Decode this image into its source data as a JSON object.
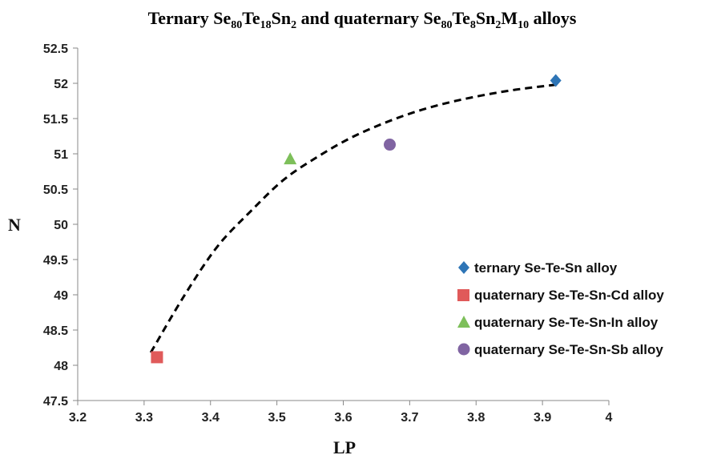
{
  "chart_data": {
    "type": "scatter",
    "title": {
      "parts": [
        {
          "t": "Ternary Se",
          "sub": false
        },
        {
          "t": "80",
          "sub": true
        },
        {
          "t": "Te",
          "sub": false
        },
        {
          "t": "18",
          "sub": true
        },
        {
          "t": "Sn",
          "sub": false
        },
        {
          "t": "2",
          "sub": true
        },
        {
          "t": " and quaternary Se",
          "sub": false
        },
        {
          "t": "80",
          "sub": true
        },
        {
          "t": "Te",
          "sub": false
        },
        {
          "t": "8",
          "sub": true
        },
        {
          "t": "Sn",
          "sub": false
        },
        {
          "t": "2",
          "sub": true
        },
        {
          "t": "M",
          "sub": false
        },
        {
          "t": "10",
          "sub": true
        },
        {
          "t": " alloys",
          "sub": false
        }
      ]
    },
    "xlabel": "LP",
    "ylabel": "N",
    "xlim": [
      3.2,
      4.0
    ],
    "ylim": [
      47.5,
      52.5
    ],
    "xticks": [
      "3.2",
      "3.3",
      "3.4",
      "3.5",
      "3.6",
      "3.7",
      "3.8",
      "3.9",
      "4"
    ],
    "yticks": [
      "47.5",
      "48",
      "48.5",
      "49",
      "49.5",
      "50",
      "50.5",
      "51",
      "51.5",
      "52",
      "52.5"
    ],
    "grid": false,
    "legend_position": "bottom-right",
    "series": [
      {
        "name": "ternary Se-Te-Sn alloy",
        "marker": "diamond",
        "color": "#2e75b6",
        "x": [
          3.92
        ],
        "y": [
          52.04
        ]
      },
      {
        "name": "quaternary Se-Te-Sn-Cd alloy",
        "marker": "square",
        "color": "#e05a5a",
        "x": [
          3.32
        ],
        "y": [
          48.12
        ]
      },
      {
        "name": "quaternary Se-Te-Sn-In alloy",
        "marker": "triangle",
        "color": "#7dbf5a",
        "x": [
          3.52
        ],
        "y": [
          50.93
        ]
      },
      {
        "name": "quaternary Se-Te-Sn-Sb alloy",
        "marker": "circle",
        "color": "#8064a2",
        "x": [
          3.67
        ],
        "y": [
          51.13
        ]
      }
    ],
    "trendline": {
      "style": "dashed",
      "color": "#000000",
      "x": [
        3.31,
        3.36,
        3.41,
        3.46,
        3.51,
        3.56,
        3.61,
        3.66,
        3.71,
        3.76,
        3.81,
        3.86,
        3.92
      ],
      "y": [
        48.18,
        48.98,
        49.68,
        50.18,
        50.63,
        50.95,
        51.22,
        51.43,
        51.6,
        51.73,
        51.83,
        51.91,
        51.98
      ]
    }
  }
}
